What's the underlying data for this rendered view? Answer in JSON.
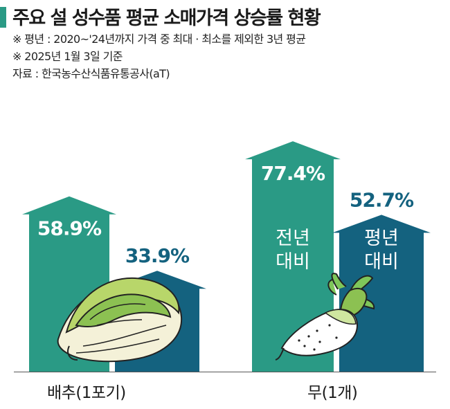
{
  "header": {
    "title": "주요 설 성수품 평균 소매가격 상승률 현황",
    "note1": "※ 평년 : 2020~'24년까지 가격 중 최대 · 최소를 제외한 3년 평균",
    "note2": "※ 2025년 1월 3일 기준",
    "source": "자료 : 한국농수산식품유통공사(aT)"
  },
  "colors": {
    "prev_year": "#2a9a85",
    "normal_year": "#14627f",
    "accent": "#2a9a85"
  },
  "chart_data": {
    "type": "bar",
    "title": "주요 설 성수품 평균 소매가격 상승률 현황",
    "categories": [
      "배추(1포기)",
      "무(1개)"
    ],
    "series": [
      {
        "name": "전년 대비",
        "values": [
          58.9,
          77.4
        ],
        "labels": [
          "58.9%",
          "77.4%"
        ]
      },
      {
        "name": "평년 대비",
        "values": [
          33.9,
          52.7
        ],
        "labels": [
          "33.9%",
          "52.7%"
        ]
      }
    ],
    "series_inline_labels": [
      "전년\n대비",
      "평년\n대비"
    ],
    "ylim": [
      0,
      100
    ],
    "grid": false,
    "bar_shape": "arrow-up",
    "icons": [
      "napa-cabbage-icon",
      "radish-icon"
    ]
  }
}
